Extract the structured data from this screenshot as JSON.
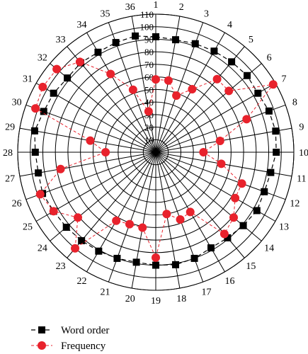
{
  "chart_data": {
    "type": "radar",
    "categories": [
      "1",
      "2",
      "3",
      "4",
      "5",
      "6",
      "7",
      "8",
      "9",
      "10",
      "11",
      "12",
      "13",
      "14",
      "15",
      "16",
      "17",
      "18",
      "19",
      "20",
      "21",
      "22",
      "23",
      "24",
      "25",
      "26",
      "27",
      "28",
      "29",
      "30",
      "31",
      "32",
      "33",
      "34",
      "35",
      "36"
    ],
    "radial_ticks": [
      "10",
      "20",
      "30",
      "40",
      "50",
      "60",
      "70",
      "80",
      "90",
      "100",
      "110"
    ],
    "rlim": [
      0,
      110
    ],
    "legend_position": "bottom-left",
    "series": [
      {
        "name": "Word order",
        "color": "#000000",
        "marker": "square",
        "values": [
          92,
          91,
          92,
          93,
          94,
          95,
          94,
          96,
          97,
          96,
          93,
          92,
          93,
          91,
          89,
          88,
          90,
          91,
          90,
          89,
          90,
          91,
          92,
          93,
          94,
          96,
          95,
          96,
          98,
          95,
          94,
          92,
          93,
          92,
          93,
          94
        ]
      },
      {
        "name": "Frequency",
        "color": "#e8222c",
        "marker": "circle",
        "values": [
          58,
          58,
          48,
          58,
          76,
          76,
          108,
          77,
          52,
          38,
          53,
          73,
          73,
          81,
          85,
          55,
          57,
          50,
          84,
          61,
          61,
          63,
          100,
          81,
          94,
          98,
          77,
          40,
          53,
          102,
          104,
          103,
          94,
          72,
          53,
          33
        ]
      }
    ]
  }
}
